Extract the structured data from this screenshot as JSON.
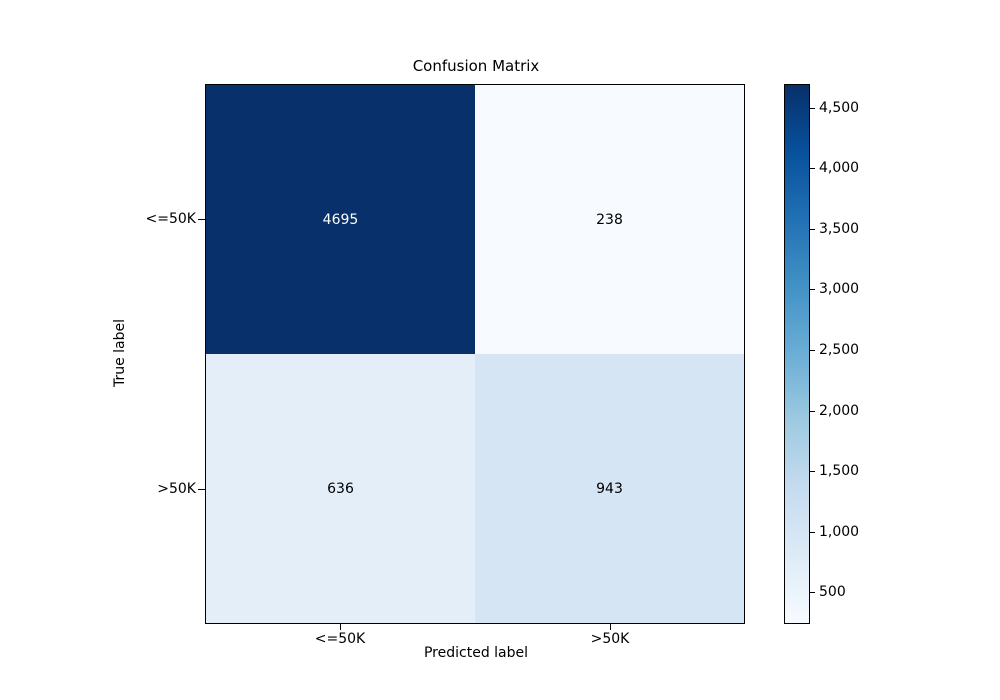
{
  "figure": {
    "background": "#ffffff"
  },
  "chart_data": {
    "type": "heatmap",
    "title": "Confusion Matrix",
    "xlabel": "Predicted label",
    "ylabel": "True label",
    "x_tick_labels": [
      "<=50K",
      ">50K"
    ],
    "y_tick_labels": [
      "<=50K",
      ">50K"
    ],
    "matrix": [
      [
        4695,
        238
      ],
      [
        636,
        943
      ]
    ],
    "vmin": 238,
    "vmax": 4695,
    "colormap": "Blues",
    "cell_colors": [
      [
        "#08306b",
        "#f7fbff"
      ],
      [
        "#e4eef9",
        "#d5e5f4"
      ]
    ],
    "cell_text_colors": [
      [
        "#ffffff",
        "#000000"
      ],
      [
        "#000000",
        "#000000"
      ]
    ],
    "grid": false,
    "colorbar": {
      "position": "right",
      "tick_values": [
        500,
        1000,
        1500,
        2000,
        2500,
        3000,
        3500,
        4000,
        4500
      ],
      "tick_labels": [
        "500",
        "1,000",
        "1,500",
        "2,000",
        "2,500",
        "3,000",
        "3,500",
        "4,000",
        "4,500"
      ],
      "gradient_stops": [
        "#f7fbff",
        "#deebf7",
        "#c6dbef",
        "#9ecae1",
        "#6baed6",
        "#4292c6",
        "#2171b5",
        "#08519c",
        "#08306b"
      ]
    }
  }
}
